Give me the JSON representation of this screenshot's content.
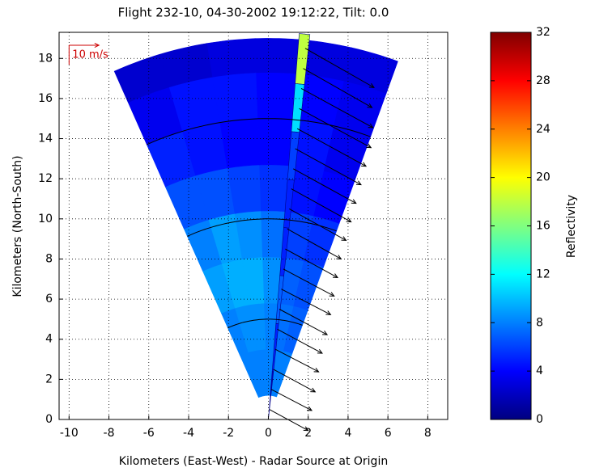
{
  "chart_data": {
    "type": "radar-ppi",
    "title": "Flight 232-10, 04-30-2002 19:12:22, Tilt: 0.0",
    "xlabel": "Kilometers (East-West) - Radar Source at Origin",
    "ylabel": "Kilometers (North-South)",
    "xlim": [
      -10.5,
      9
    ],
    "ylim": [
      0,
      19.3
    ],
    "xticks": [
      -10,
      -8,
      -6,
      -4,
      -2,
      0,
      2,
      4,
      6,
      8
    ],
    "yticks": [
      0,
      2,
      4,
      6,
      8,
      10,
      12,
      14,
      16,
      18
    ],
    "grid": true,
    "field": {
      "range_edges": [
        1.2,
        3.5,
        5.8,
        8.1,
        10.4,
        12.7,
        15,
        17.3,
        19
      ],
      "azimuth_edges": [
        -24,
        -16.7,
        -9.3,
        -2,
        5.3,
        12.7,
        20
      ],
      "values": [
        [
          8,
          8,
          8,
          8,
          8,
          8
        ],
        [
          8,
          8.5,
          8.5,
          8,
          7.5,
          7
        ],
        [
          9,
          9.5,
          9.5,
          8.5,
          7,
          6.5
        ],
        [
          8,
          9,
          8.5,
          7.5,
          6,
          5.5
        ],
        [
          6.5,
          6.5,
          6,
          5.5,
          4.5,
          4
        ],
        [
          5,
          4.5,
          4,
          4,
          4.5,
          3.5
        ],
        [
          3.5,
          4.5,
          4.5,
          4,
          4,
          3.5
        ],
        [
          2.5,
          2.5,
          3,
          3,
          3,
          3
        ]
      ]
    },
    "beam": {
      "azimuth": [
        4.6,
        6.2
      ],
      "range_edges": [
        0,
        2.4,
        4.8,
        7.2,
        9.6,
        12,
        14.4,
        16.8,
        19.3
      ],
      "values": [
        2,
        5,
        7,
        5,
        5,
        6,
        11,
        18
      ]
    },
    "range_rings": [
      5,
      10,
      15
    ],
    "vectors": {
      "x": [
        0.05,
        0.15,
        0.25,
        0.35,
        0.45,
        0.55,
        0.65,
        0.75,
        0.85,
        0.95,
        1.05,
        1.15,
        1.25,
        1.35,
        1.45,
        1.55,
        1.65,
        1.75,
        1.85
      ],
      "y": [
        0.5,
        1.5,
        2.5,
        3.5,
        4.5,
        5.5,
        6.5,
        7.5,
        8.5,
        9.5,
        10.5,
        11.5,
        12.5,
        13.5,
        14.5,
        15.5,
        16.5,
        17.5,
        18.5
      ],
      "u": [
        13,
        13.5,
        14,
        14.5,
        15,
        16,
        16.5,
        17,
        17.5,
        18,
        19,
        20,
        21,
        22,
        23,
        24,
        24,
        23,
        23
      ],
      "v": [
        -7,
        -7,
        -7.5,
        -7.5,
        -8,
        -8.5,
        -8.5,
        -9,
        -9.5,
        -10,
        -10.5,
        -11,
        -11.5,
        -12,
        -12.5,
        -13,
        -13,
        -13,
        -13
      ]
    },
    "reference_vector_label": "10 m/s",
    "colorbar": {
      "label": "Reflectivity",
      "clim": [
        0,
        32
      ],
      "ticks": [
        0,
        4,
        8,
        12,
        16,
        20,
        24,
        28,
        32
      ]
    }
  }
}
